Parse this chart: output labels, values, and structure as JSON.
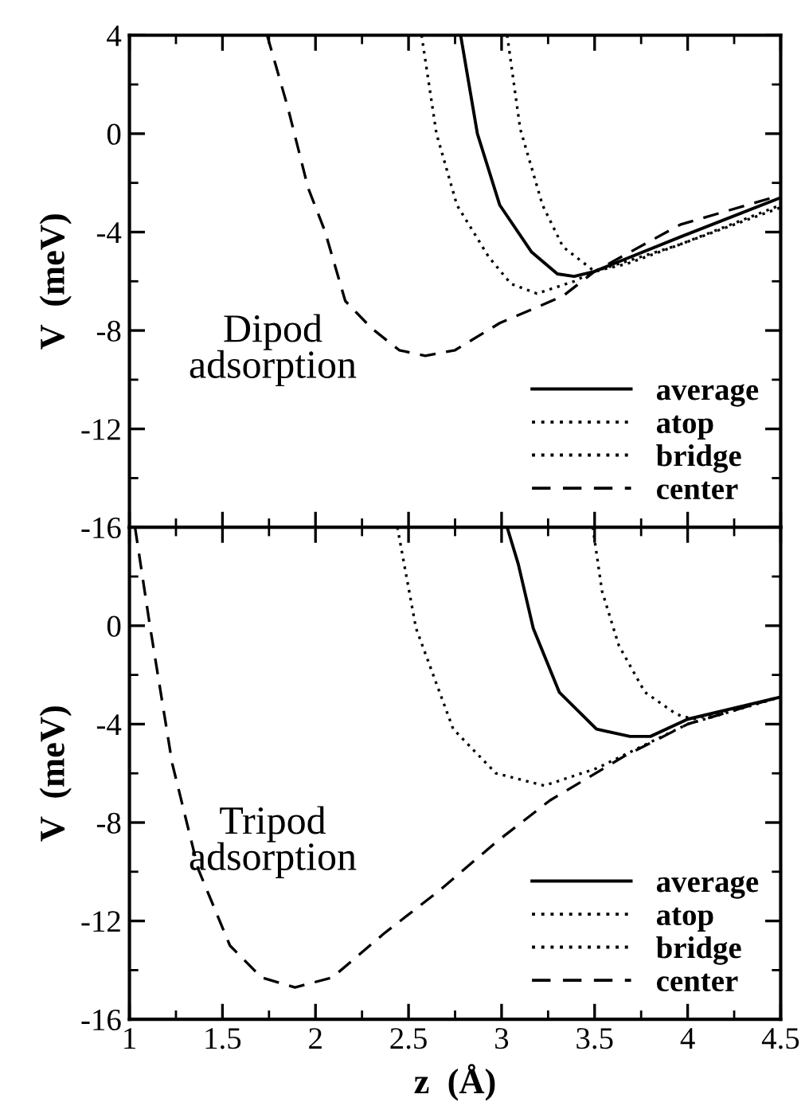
{
  "chart_data": [
    {
      "type": "line",
      "ylabel": "V  (meV)",
      "xlim": [
        1,
        4.5
      ],
      "xticks": [
        1,
        1.5,
        2,
        2.5,
        3,
        3.5,
        4,
        4.5
      ],
      "ylim": [
        -16,
        4
      ],
      "yticks": [
        4,
        0,
        -4,
        -8,
        -12,
        -16
      ],
      "tick_labels": "y",
      "legend": "bottom right",
      "grid": false,
      "annotations": [
        "Dipod\nadsorption"
      ],
      "series": [
        {
          "name": "average",
          "color": "#000000",
          "line_style": "solid",
          "x": [
            2.78,
            2.87,
            2.99,
            3.16,
            3.3,
            3.39,
            3.5,
            3.96,
            4.5
          ],
          "values": [
            4,
            0,
            -2.9,
            -4.8,
            -5.7,
            -5.8,
            -5.6,
            -4.2,
            -2.6
          ]
        },
        {
          "name": "atop",
          "color": "#000000",
          "line_style": "dotted",
          "x": [
            3.03,
            3.1,
            3.22,
            3.33,
            3.5,
            3.67,
            3.96,
            4.5
          ],
          "values": [
            4,
            0.2,
            -2.9,
            -4.6,
            -5.6,
            -5.3,
            -4.5,
            -3.0
          ]
        },
        {
          "name": "bridge",
          "color": "#000000",
          "line_style": "dotted",
          "x": [
            2.57,
            2.65,
            2.76,
            2.93,
            3.05,
            3.19,
            3.39,
            3.5,
            3.96,
            4.5
          ],
          "values": [
            4,
            0,
            -2.9,
            -5.0,
            -6.1,
            -6.5,
            -6.0,
            -5.6,
            -4.5,
            -2.9
          ]
        },
        {
          "name": "center",
          "color": "#000000",
          "line_style": "dashed",
          "x": [
            1.74,
            1.85,
            1.96,
            2.05,
            2.16,
            2.3,
            2.45,
            2.59,
            2.75,
            2.99,
            3.33,
            3.5,
            3.96,
            4.5
          ],
          "values": [
            4,
            1.1,
            -2.2,
            -3.95,
            -6.8,
            -7.9,
            -8.8,
            -9.03,
            -8.8,
            -7.7,
            -6.6,
            -5.6,
            -3.7,
            -2.5
          ]
        }
      ]
    },
    {
      "type": "line",
      "ylabel": "V  (meV)",
      "xlabel": "z  (Å)",
      "xlim": [
        1,
        4.5
      ],
      "xticks": [
        1,
        1.5,
        2,
        2.5,
        3,
        3.5,
        4,
        4.5
      ],
      "ylim": [
        -16,
        4
      ],
      "yticks": [
        {
          "value": 4,
          "label": null
        },
        0,
        -4,
        -8,
        -12,
        -16
      ],
      "legend": "bottom right",
      "grid": false,
      "annotations": [
        "Tripod\nadsorption"
      ],
      "series": [
        {
          "name": "average",
          "color": "#000000",
          "line_style": "solid",
          "x": [
            3.03,
            3.09,
            3.17,
            3.31,
            3.51,
            3.69,
            3.8,
            4.0,
            4.5
          ],
          "values": [
            4,
            2.5,
            -0.1,
            -2.7,
            -4.2,
            -4.5,
            -4.5,
            -3.8,
            -2.9
          ]
        },
        {
          "name": "atop",
          "color": "#000000",
          "line_style": "dotted",
          "x": [
            3.49,
            3.54,
            3.63,
            3.77,
            3.94,
            4.03,
            4.5
          ],
          "values": [
            4,
            1.4,
            -0.8,
            -2.7,
            -3.6,
            -3.8,
            -2.9
          ]
        },
        {
          "name": "bridge",
          "color": "#000000",
          "line_style": "dotted",
          "x": [
            2.44,
            2.54,
            2.74,
            2.97,
            3.23,
            3.51,
            4.0,
            4.5
          ],
          "values": [
            4,
            -0.1,
            -4.2,
            -6.0,
            -6.5,
            -5.8,
            -4.0,
            -2.9
          ]
        },
        {
          "name": "center",
          "color": "#000000",
          "line_style": "dashed",
          "x": [
            1.03,
            1.11,
            1.23,
            1.37,
            1.54,
            1.71,
            1.89,
            2.09,
            2.37,
            2.66,
            2.97,
            3.26,
            3.66,
            4.0,
            4.49
          ],
          "values": [
            4,
            0,
            -5.6,
            -9.9,
            -13.0,
            -14.3,
            -14.7,
            -14.3,
            -12.5,
            -10.8,
            -8.8,
            -7.1,
            -5.3,
            -4.0,
            -2.9
          ]
        }
      ]
    }
  ]
}
